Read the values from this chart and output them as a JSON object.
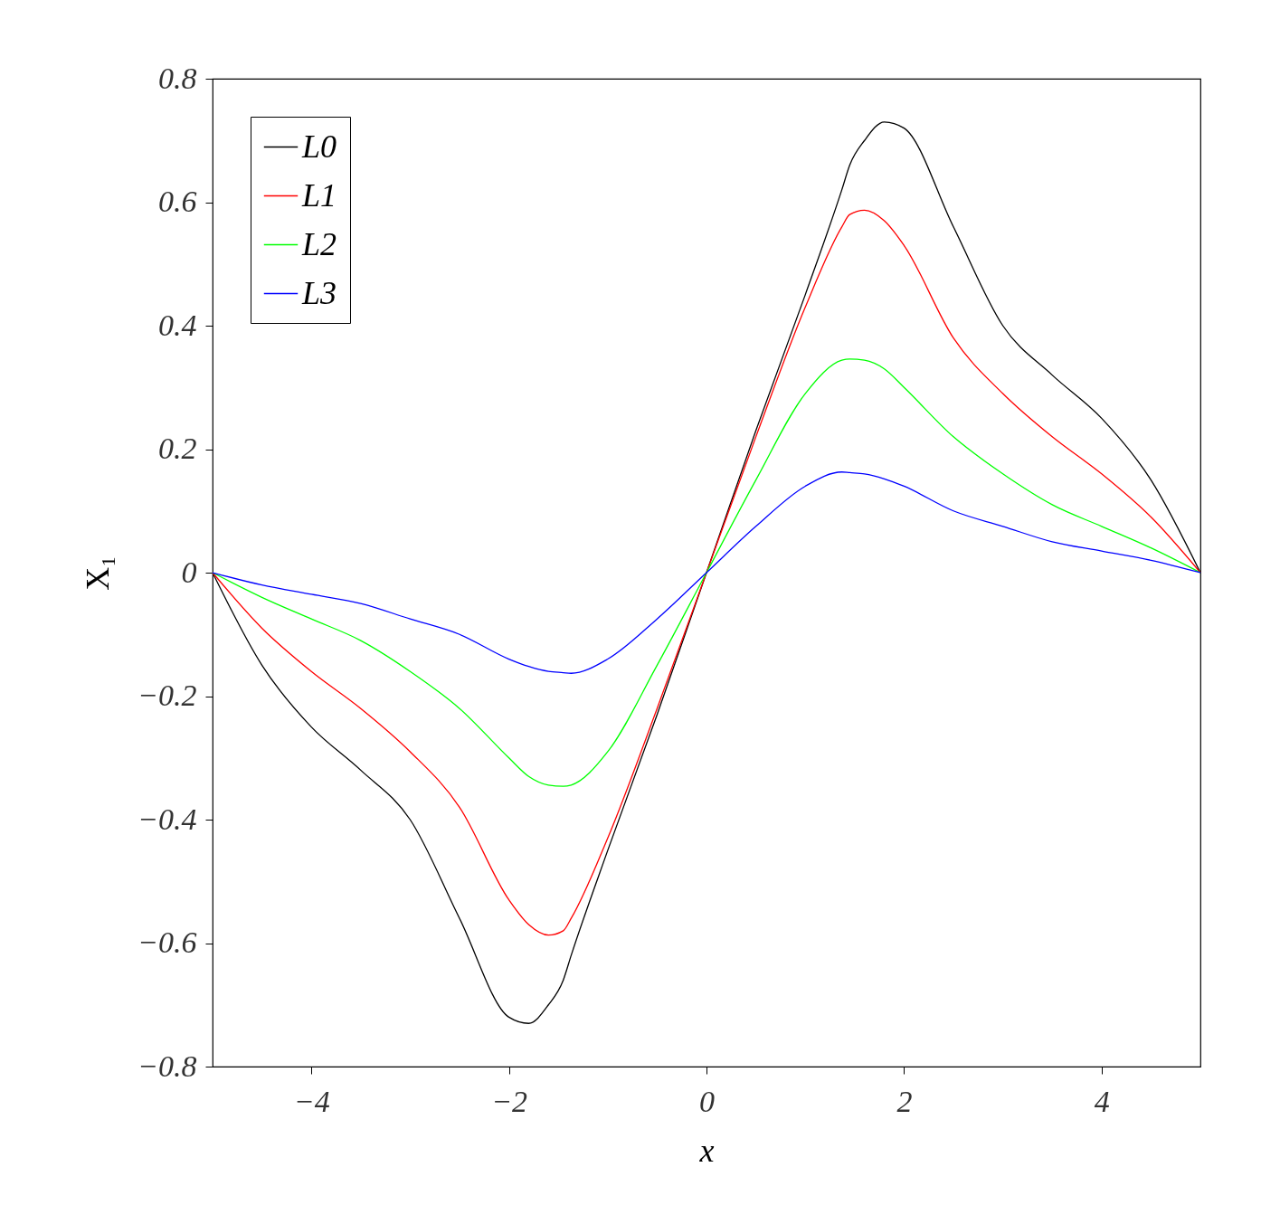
{
  "chart_data": {
    "type": "line",
    "xlabel": "x",
    "ylabel": "X₁",
    "x": [
      -5,
      -4.5,
      -4,
      -3.5,
      -3,
      -2.5,
      -2,
      -1.8,
      -1.6,
      -1.45,
      -1.37,
      -1,
      -0.5,
      0,
      0.5,
      1,
      1.37,
      1.45,
      1.6,
      1.8,
      2,
      2.5,
      3,
      3.5,
      4,
      4.5,
      5
    ],
    "series": [
      {
        "name": "L0",
        "color": "#000000",
        "values": [
          0,
          -0.15,
          -0.25,
          -0.32,
          -0.4,
          -0.56,
          -0.72,
          -0.73,
          -0.7,
          -0.66,
          -0.62,
          -0.45,
          -0.23,
          0,
          0.23,
          0.45,
          0.62,
          0.66,
          0.7,
          0.73,
          0.72,
          0.56,
          0.4,
          0.32,
          0.25,
          0.15,
          0
        ]
      },
      {
        "name": "L1",
        "color": "#ff0000",
        "values": [
          0,
          -0.09,
          -0.16,
          -0.22,
          -0.29,
          -0.38,
          -0.53,
          -0.57,
          -0.587,
          -0.58,
          -0.56,
          -0.43,
          -0.22,
          0,
          0.22,
          0.43,
          0.56,
          0.58,
          0.587,
          0.57,
          0.53,
          0.38,
          0.29,
          0.22,
          0.16,
          0.09,
          0
        ]
      },
      {
        "name": "L2",
        "color": "#00ff00",
        "values": [
          0,
          -0.04,
          -0.075,
          -0.11,
          -0.16,
          -0.22,
          -0.3,
          -0.33,
          -0.344,
          -0.346,
          -0.344,
          -0.29,
          -0.15,
          0,
          0.15,
          0.29,
          0.344,
          0.346,
          0.344,
          0.33,
          0.3,
          0.22,
          0.16,
          0.11,
          0.075,
          0.04,
          0
        ]
      },
      {
        "name": "L3",
        "color": "#0000ff",
        "values": [
          0,
          -0.02,
          -0.035,
          -0.05,
          -0.075,
          -0.1,
          -0.14,
          -0.152,
          -0.16,
          -0.162,
          -0.163,
          -0.14,
          -0.075,
          0,
          0.075,
          0.14,
          0.163,
          0.162,
          0.16,
          0.152,
          0.14,
          0.1,
          0.075,
          0.05,
          0.035,
          0.02,
          0
        ]
      }
    ],
    "xlim": [
      -5,
      5
    ],
    "xticks": [
      {
        "value": -4,
        "label": "−4"
      },
      {
        "value": -2,
        "label": "−2"
      },
      0,
      2,
      4
    ],
    "ylim": [
      -0.8,
      0.8
    ],
    "yticks": [
      {
        "value": -0.8,
        "label": "−0.8"
      },
      {
        "value": -0.6,
        "label": "−0.6"
      },
      {
        "value": -0.4,
        "label": "−0.4"
      },
      {
        "value": -0.2,
        "label": "−0.2"
      },
      0,
      0.2,
      0.4,
      0.6,
      0.8
    ],
    "legend": "top left",
    "grid": false
  }
}
